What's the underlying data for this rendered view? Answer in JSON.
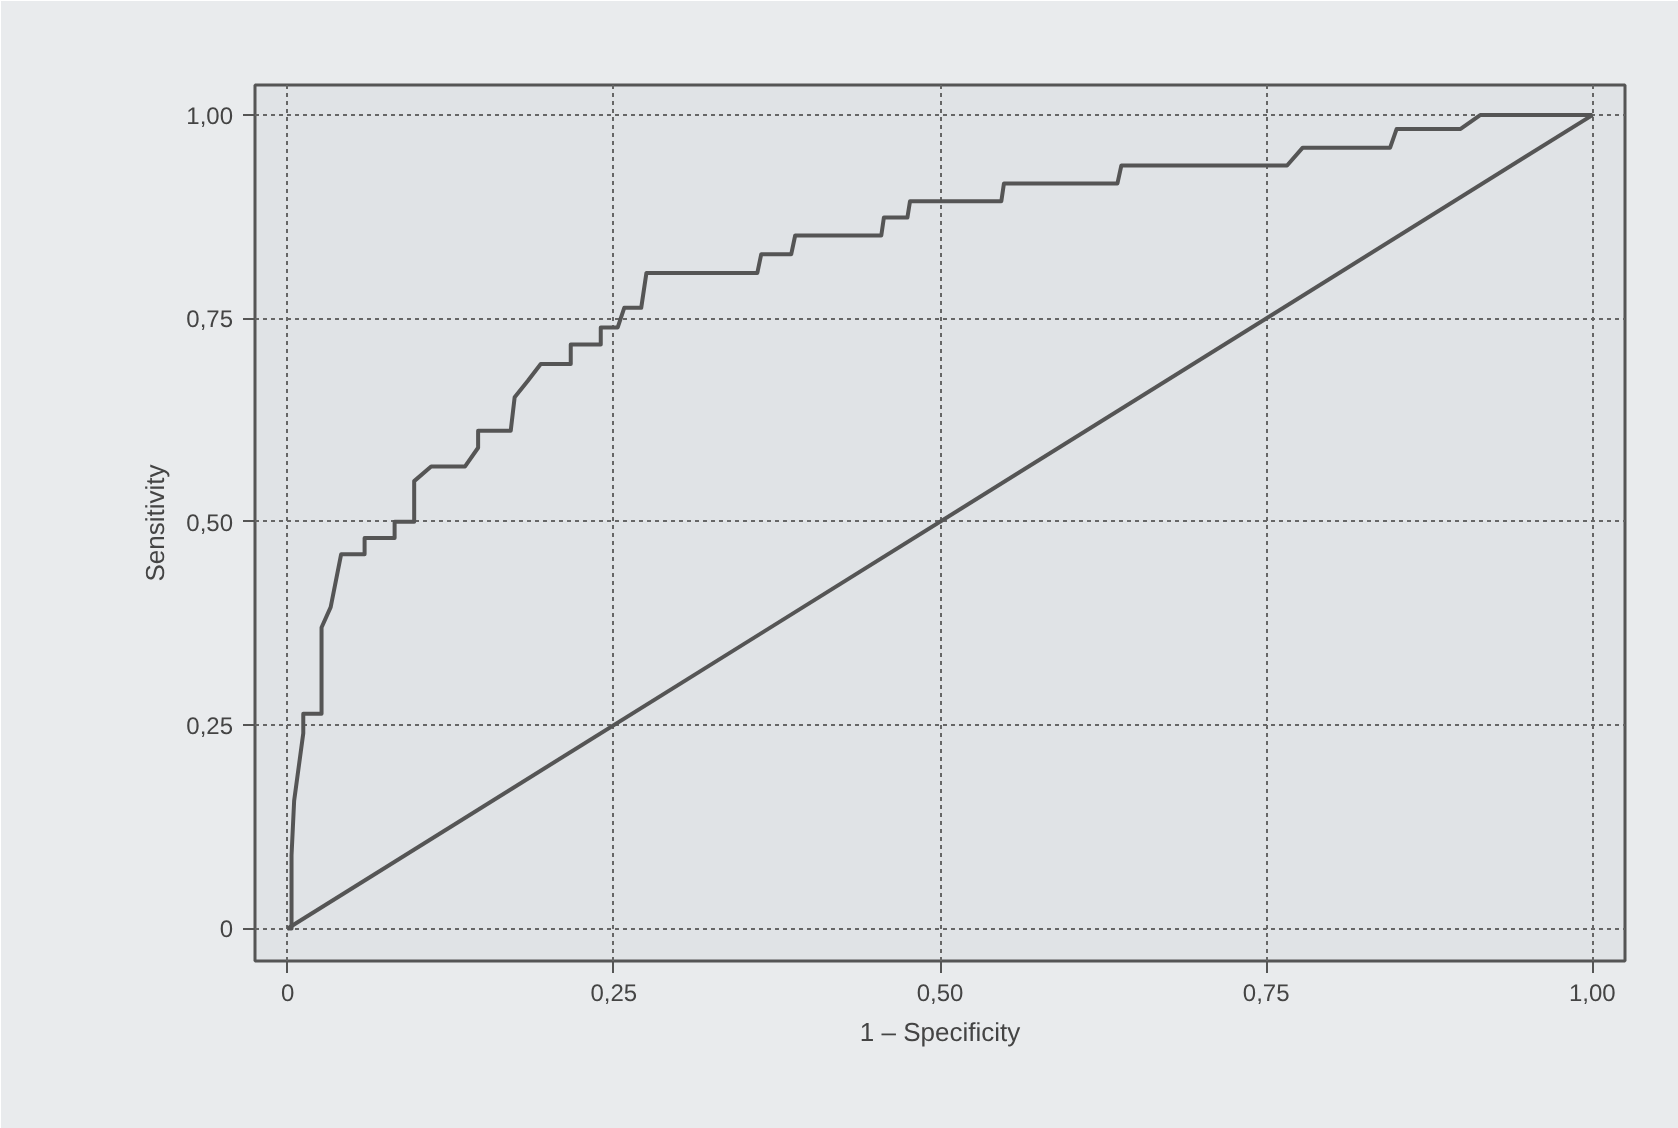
{
  "chart_data": {
    "type": "line",
    "xlabel": "1 – Specificity",
    "ylabel": "Sensitivity",
    "xlim": [
      -0.025,
      1.025
    ],
    "ylim": [
      -0.04,
      1.037
    ],
    "xticks": [
      0,
      {
        "value": 0.25,
        "label": "0,25"
      },
      {
        "value": 0.5,
        "label": "0,50"
      },
      {
        "value": 0.75,
        "label": "0,75"
      },
      {
        "value": 1,
        "label": "1,00"
      }
    ],
    "yticks": [
      0,
      {
        "value": 0.25,
        "label": "0,25"
      },
      {
        "value": 0.5,
        "label": "0,50"
      },
      {
        "value": 0.75,
        "label": "0,75"
      },
      {
        "value": 1,
        "label": "1,00"
      }
    ],
    "grid": true,
    "marker": "none",
    "line_style": "solid",
    "series": [
      {
        "color": "#555555",
        "x": [
          0,
          0.003,
          0.003,
          0.005,
          0.012,
          0.012,
          0.026,
          0.026,
          0.033,
          0.041,
          0.059,
          0.059,
          0.082,
          0.082,
          0.097,
          0.097,
          0.11,
          0.136,
          0.146,
          0.146,
          0.171,
          0.174,
          0.184,
          0.194,
          0.217,
          0.217,
          0.24,
          0.24,
          0.253,
          0.258,
          0.271,
          0.275,
          0.36,
          0.363,
          0.386,
          0.389,
          0.455,
          0.457,
          0.475,
          0.477,
          0.547,
          0.549,
          0.636,
          0.639,
          0.766,
          0.778,
          0.845,
          0.85,
          0.899,
          0.914,
          1.0
        ],
        "values": [
          0,
          0,
          0.09,
          0.157,
          0.24,
          0.264,
          0.264,
          0.37,
          0.395,
          0.46,
          0.46,
          0.48,
          0.48,
          0.5,
          0.5,
          0.55,
          0.568,
          0.568,
          0.591,
          0.612,
          0.612,
          0.653,
          0.673,
          0.694,
          0.694,
          0.718,
          0.718,
          0.739,
          0.739,
          0.763,
          0.763,
          0.806,
          0.806,
          0.829,
          0.829,
          0.852,
          0.852,
          0.874,
          0.874,
          0.894,
          0.894,
          0.916,
          0.916,
          0.938,
          0.938,
          0.96,
          0.96,
          0.983,
          0.983,
          1.0,
          1.0
        ]
      },
      {
        "color": "#555555",
        "x": [
          0,
          1
        ],
        "values": [
          0,
          1
        ]
      }
    ]
  }
}
